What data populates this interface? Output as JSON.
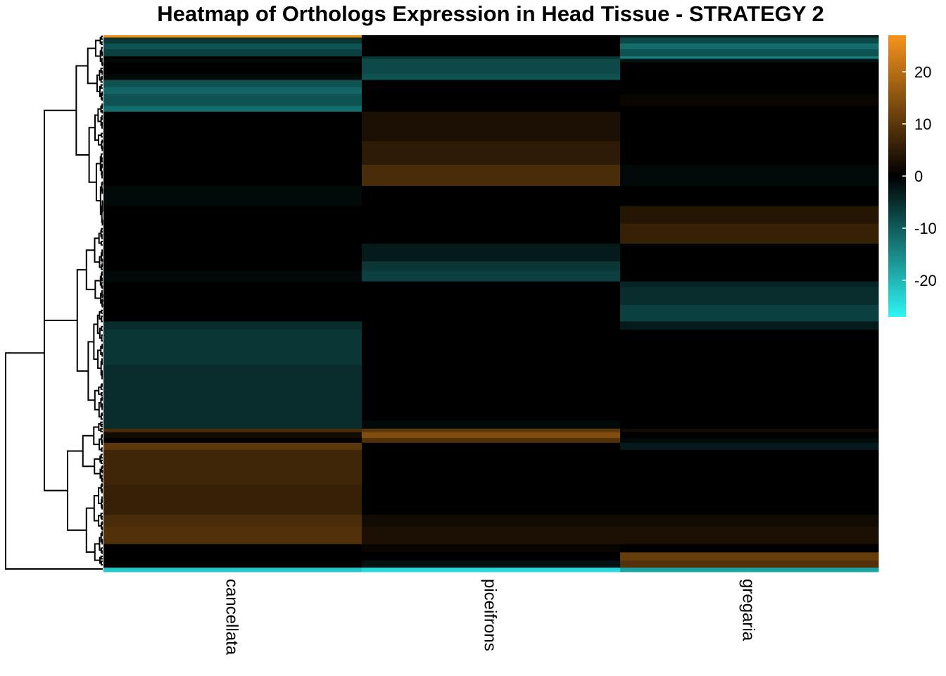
{
  "chart_data": {
    "type": "heatmap",
    "title": "Heatmap of Orthologs Expression in Head Tissue - STRATEGY 2",
    "columns": [
      "cancellata",
      "piceifrons",
      "gregaria"
    ],
    "row_dendrogram": true,
    "legend": {
      "placement": "right",
      "range": [
        -27,
        27
      ],
      "ticks": [
        20,
        10,
        0,
        -10,
        -20
      ],
      "tick_labels": [
        "20",
        "10",
        "0",
        "-10",
        "-20"
      ],
      "colors": {
        "low": "#2ef5f5",
        "mid": "#000000",
        "high": "#f7941d"
      }
    },
    "row_blocks": [
      {
        "frac": 0.004,
        "values": [
          26,
          0,
          -3
        ]
      },
      {
        "frac": 0.01,
        "values": [
          -6,
          0,
          -8
        ]
      },
      {
        "frac": 0.01,
        "values": [
          -9,
          0,
          -12
        ]
      },
      {
        "frac": 0.012,
        "values": [
          -7,
          0,
          -9
        ]
      },
      {
        "frac": 0.004,
        "values": [
          0,
          -6,
          -14
        ]
      },
      {
        "frac": 0.006,
        "values": [
          -1,
          -8,
          -2
        ]
      },
      {
        "frac": 0.02,
        "values": [
          0,
          -8,
          0
        ]
      },
      {
        "frac": 0.01,
        "values": [
          -1,
          -9,
          0
        ]
      },
      {
        "frac": 0.012,
        "values": [
          -9,
          0,
          0
        ]
      },
      {
        "frac": 0.012,
        "values": [
          -11,
          0,
          0
        ]
      },
      {
        "frac": 0.02,
        "values": [
          -9,
          0,
          1
        ]
      },
      {
        "frac": 0.01,
        "values": [
          -12,
          0,
          0
        ]
      },
      {
        "frac": 0.05,
        "values": [
          0,
          3,
          0
        ]
      },
      {
        "frac": 0.04,
        "values": [
          0,
          5,
          0
        ]
      },
      {
        "frac": 0.036,
        "values": [
          0,
          8,
          -1
        ]
      },
      {
        "frac": 0.034,
        "values": [
          -1,
          0,
          0
        ]
      },
      {
        "frac": 0.03,
        "values": [
          0,
          0,
          4
        ]
      },
      {
        "frac": 0.034,
        "values": [
          0,
          0,
          6
        ]
      },
      {
        "frac": 0.03,
        "values": [
          0,
          -3,
          0
        ]
      },
      {
        "frac": 0.016,
        "values": [
          0,
          -6,
          0
        ]
      },
      {
        "frac": 0.018,
        "values": [
          -1,
          -7,
          0
        ]
      },
      {
        "frac": 0.01,
        "values": [
          0,
          0,
          -4
        ]
      },
      {
        "frac": 0.03,
        "values": [
          0,
          0,
          -5
        ]
      },
      {
        "frac": 0.028,
        "values": [
          0,
          0,
          -7
        ]
      },
      {
        "frac": 0.014,
        "values": [
          -5,
          0,
          -3
        ]
      },
      {
        "frac": 0.06,
        "values": [
          -6,
          0,
          0
        ]
      },
      {
        "frac": 0.05,
        "values": [
          -5,
          0,
          0
        ]
      },
      {
        "frac": 0.044,
        "values": [
          -5,
          0,
          0
        ]
      },
      {
        "frac": 0.014,
        "values": [
          -5,
          -1,
          0
        ]
      },
      {
        "frac": 0.006,
        "values": [
          8,
          10,
          2
        ]
      },
      {
        "frac": 0.01,
        "values": [
          2,
          14,
          0
        ]
      },
      {
        "frac": 0.008,
        "values": [
          0,
          9,
          -1
        ]
      },
      {
        "frac": 0.012,
        "values": [
          10,
          0,
          -3
        ]
      },
      {
        "frac": 0.06,
        "values": [
          7,
          0,
          0
        ]
      },
      {
        "frac": 0.05,
        "values": [
          6,
          0,
          0
        ]
      },
      {
        "frac": 0.02,
        "values": [
          8,
          2,
          2
        ]
      },
      {
        "frac": 0.03,
        "values": [
          9,
          3,
          3
        ]
      },
      {
        "frac": 0.014,
        "values": [
          0,
          1,
          0
        ]
      },
      {
        "frac": 0.014,
        "values": [
          0,
          0,
          11
        ]
      },
      {
        "frac": 0.012,
        "values": [
          0,
          -2,
          9
        ]
      },
      {
        "frac": 0.007,
        "values": [
          -22,
          -24,
          -18
        ]
      }
    ]
  }
}
